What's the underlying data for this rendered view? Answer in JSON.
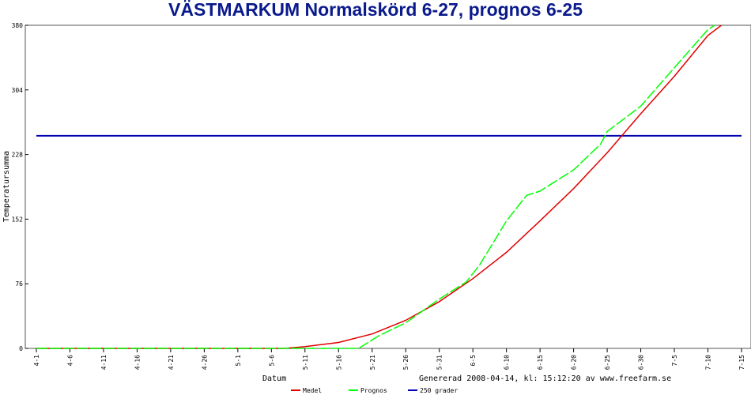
{
  "chart_data": {
    "type": "line",
    "title": "VÄSTMARKUM Normalskörd 6-27, prognos 6-25",
    "xlabel": "Datum",
    "ylabel": "Temperatursumma",
    "x_ticks": [
      "4-1",
      "4-6",
      "4-11",
      "4-16",
      "4-21",
      "4-26",
      "5-1",
      "5-6",
      "5-11",
      "5-16",
      "5-21",
      "5-26",
      "5-31",
      "6-5",
      "6-10",
      "6-15",
      "6-20",
      "6-25",
      "6-30",
      "7-5",
      "7-10",
      "7-15"
    ],
    "y_ticks": [
      0,
      76,
      152,
      228,
      304,
      380
    ],
    "ylim": [
      0,
      380
    ],
    "grid": false,
    "footer": "Genererad 2008-04-14, kl: 15:12:20 av www.freefarm.se",
    "series": [
      {
        "name": "Medel",
        "color": "#e00000",
        "dashed": false,
        "points": [
          [
            "4-1",
            0
          ],
          [
            "5-8",
            0
          ],
          [
            "5-11",
            2
          ],
          [
            "5-16",
            7
          ],
          [
            "5-21",
            17
          ],
          [
            "5-26",
            33
          ],
          [
            "5-31",
            55
          ],
          [
            "6-5",
            82
          ],
          [
            "6-10",
            113
          ],
          [
            "6-15",
            150
          ],
          [
            "6-20",
            188
          ],
          [
            "6-25",
            230
          ],
          [
            "6-30",
            276
          ],
          [
            "7-5",
            320
          ],
          [
            "7-10",
            368
          ],
          [
            "7-12",
            380
          ]
        ]
      },
      {
        "name": "Prognos",
        "color": "#00ff00",
        "dashed": true,
        "points": [
          [
            "4-1",
            0
          ],
          [
            "5-19",
            0
          ],
          [
            "5-22",
            15
          ],
          [
            "5-26",
            30
          ],
          [
            "5-31",
            58
          ],
          [
            "6-4",
            78
          ],
          [
            "6-6",
            98
          ],
          [
            "6-10",
            150
          ],
          [
            "6-12",
            170
          ],
          [
            "6-13",
            180
          ],
          [
            "6-15",
            185
          ],
          [
            "6-19",
            205
          ],
          [
            "6-20",
            210
          ],
          [
            "6-24",
            240
          ],
          [
            "6-25",
            255
          ],
          [
            "6-30",
            285
          ],
          [
            "7-5",
            330
          ],
          [
            "7-10",
            375
          ],
          [
            "7-11",
            380
          ]
        ]
      },
      {
        "name": "250 grader",
        "color": "#0000b0",
        "dashed": false,
        "points": [
          [
            "4-1",
            250
          ],
          [
            "7-15",
            250
          ]
        ]
      }
    ],
    "legend_position": "bottom"
  }
}
